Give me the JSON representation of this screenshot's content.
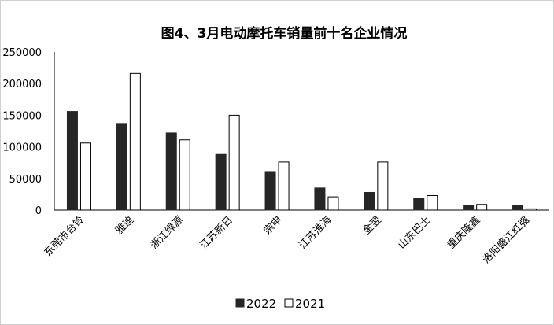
{
  "chart_data": {
    "type": "bar",
    "title": "图4、3月电动摩托车销量前十名企业情况",
    "xlabel": "",
    "ylabel": "",
    "ylim": [
      0,
      250000
    ],
    "yticks": [
      "0",
      "50000",
      "100000",
      "150000",
      "200000",
      "250000"
    ],
    "grid": false,
    "legend_position": "bottom",
    "categories": [
      "东莞市台铃",
      "雅迪",
      "浙江绿源",
      "江苏新日",
      "宗申",
      "江苏淮海",
      "金翌",
      "山东巴士",
      "重庆隆鑫",
      "洛阳盛江红强"
    ],
    "series": [
      {
        "name": "2022",
        "color": "#262626",
        "values": [
          156000,
          137000,
          122000,
          88000,
          61000,
          35000,
          28000,
          19000,
          8000,
          7000
        ]
      },
      {
        "name": "2021",
        "color": "#ffffff",
        "values": [
          106000,
          216000,
          111000,
          150000,
          76000,
          21000,
          76000,
          23000,
          9000,
          2000
        ]
      }
    ]
  }
}
